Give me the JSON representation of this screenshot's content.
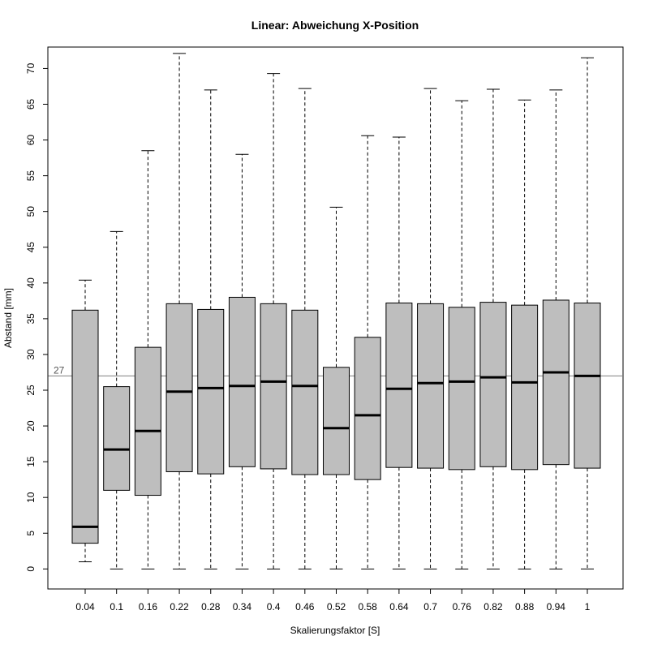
{
  "chart_data": {
    "type": "boxplot",
    "title": "Linear: Abweichung X-Position",
    "xlabel": "Skalierungsfaktor [S]",
    "ylabel": "Abstand [mm]",
    "ylim": [
      -2.8,
      73.0
    ],
    "yticks": [
      0,
      5,
      10,
      15,
      20,
      25,
      30,
      35,
      40,
      45,
      50,
      55,
      60,
      65,
      70
    ],
    "categories": [
      "0.04",
      "0.1",
      "0.16",
      "0.22",
      "0.28",
      "0.34",
      "0.4",
      "0.46",
      "0.52",
      "0.58",
      "0.64",
      "0.7",
      "0.76",
      "0.82",
      "0.88",
      "0.94",
      "1"
    ],
    "boxes": [
      {
        "min": 1.0,
        "q1": 3.6,
        "median": 5.9,
        "q3": 36.2,
        "max": 40.4
      },
      {
        "min": 0,
        "q1": 11.0,
        "median": 16.7,
        "q3": 25.5,
        "max": 47.2
      },
      {
        "min": 0,
        "q1": 10.3,
        "median": 19.3,
        "q3": 31.0,
        "max": 58.5
      },
      {
        "min": 0,
        "q1": 13.6,
        "median": 24.8,
        "q3": 37.1,
        "max": 72.1
      },
      {
        "min": 0,
        "q1": 13.3,
        "median": 25.3,
        "q3": 36.3,
        "max": 67.0
      },
      {
        "min": 0,
        "q1": 14.3,
        "median": 25.6,
        "q3": 38.0,
        "max": 58.0
      },
      {
        "min": 0,
        "q1": 14.0,
        "median": 26.2,
        "q3": 37.1,
        "max": 69.3
      },
      {
        "min": 0,
        "q1": 13.2,
        "median": 25.6,
        "q3": 36.2,
        "max": 67.2
      },
      {
        "min": 0,
        "q1": 13.2,
        "median": 19.7,
        "q3": 28.2,
        "max": 50.6
      },
      {
        "min": 0,
        "q1": 12.5,
        "median": 21.5,
        "q3": 32.4,
        "max": 60.6
      },
      {
        "min": 0,
        "q1": 14.2,
        "median": 25.2,
        "q3": 37.2,
        "max": 60.4
      },
      {
        "min": 0,
        "q1": 14.1,
        "median": 26.0,
        "q3": 37.1,
        "max": 67.2
      },
      {
        "min": 0,
        "q1": 13.9,
        "median": 26.2,
        "q3": 36.6,
        "max": 65.5
      },
      {
        "min": 0,
        "q1": 14.3,
        "median": 26.8,
        "q3": 37.3,
        "max": 67.1
      },
      {
        "min": 0,
        "q1": 13.9,
        "median": 26.1,
        "q3": 36.9,
        "max": 65.6
      },
      {
        "min": 0,
        "q1": 14.6,
        "median": 27.5,
        "q3": 37.6,
        "max": 67.0
      },
      {
        "min": 0,
        "q1": 14.1,
        "median": 27.0,
        "q3": 37.2,
        "max": 71.5
      }
    ],
    "reference_line": {
      "value": 27,
      "label": "27",
      "color": "#808080"
    },
    "box_fill": "#bebebe",
    "grid": false
  }
}
